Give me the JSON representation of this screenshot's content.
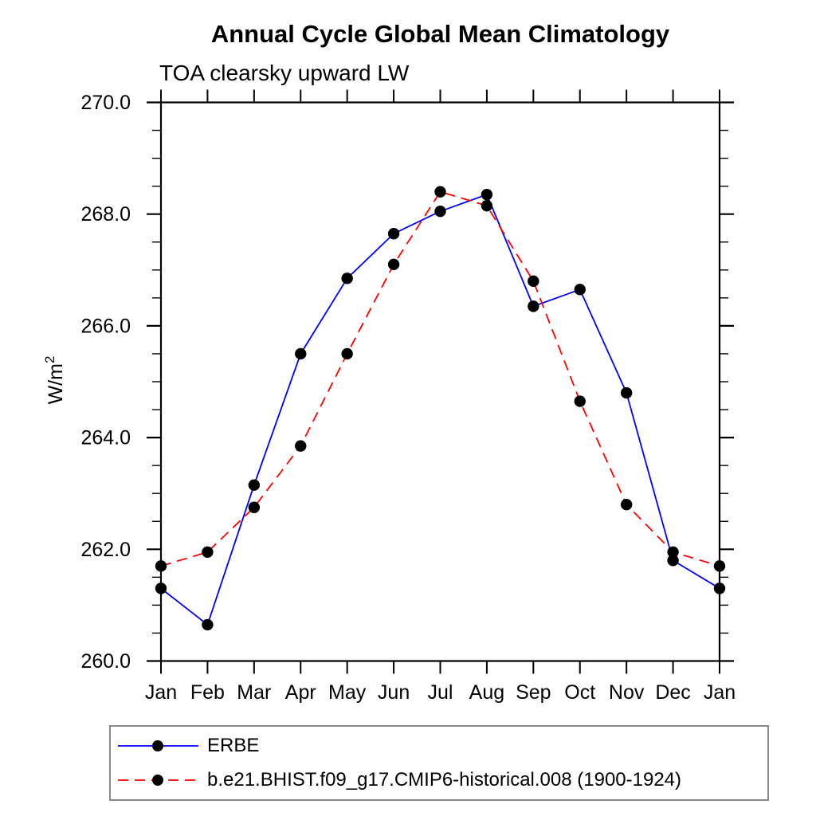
{
  "chart_data": {
    "type": "line",
    "title": "Annual Cycle Global Mean Climatology",
    "subtitle": "TOA clearsky upward LW",
    "ylabel": "W/m²",
    "xlabel": "",
    "ylim": [
      260.0,
      270.0
    ],
    "ytick_major_interval": 2.0,
    "ytick_minor_interval": 0.5,
    "ytick_label_format": "one-decimal",
    "grid": false,
    "frame": "box-with-outward-ticks",
    "legend_position": "bottom-left-boxed",
    "marker": {
      "shape": "circle",
      "color": "#000000"
    },
    "categories": [
      "Jan",
      "Feb",
      "Mar",
      "Apr",
      "May",
      "Jun",
      "Jul",
      "Aug",
      "Sep",
      "Oct",
      "Nov",
      "Dec",
      "Jan"
    ],
    "series": [
      {
        "name": "ERBE",
        "color": "#0000ff",
        "line_style": "solid",
        "values": [
          261.3,
          260.65,
          263.15,
          265.5,
          266.85,
          267.65,
          268.05,
          268.35,
          266.35,
          266.65,
          264.8,
          261.8,
          261.3
        ]
      },
      {
        "name": "b.e21.BHIST.f09_g17.CMIP6-historical.008 (1900-1924)",
        "color": "#ff0000",
        "line_style": "dashed",
        "values": [
          261.7,
          261.95,
          262.75,
          263.85,
          265.5,
          267.1,
          268.4,
          268.15,
          266.8,
          264.65,
          262.8,
          261.95,
          261.7
        ]
      }
    ]
  }
}
